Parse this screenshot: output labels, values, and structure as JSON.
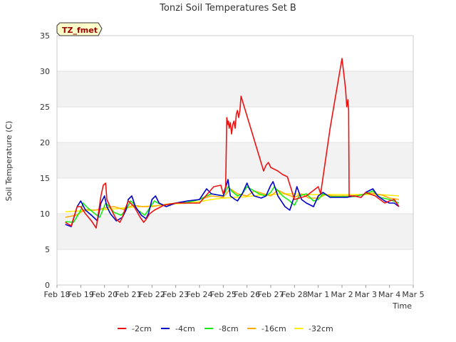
{
  "chart_data": {
    "type": "line",
    "title": "Tonzi Soil Temperatures Set B",
    "xlabel": "Time",
    "ylabel": "Soil Temperature (C)",
    "ylim": [
      0,
      35
    ],
    "xlim": [
      0,
      15
    ],
    "yticks": [
      0,
      5,
      10,
      15,
      20,
      25,
      30,
      35
    ],
    "xtick_labels": [
      "Feb 18",
      "Feb 19",
      "Feb 20",
      "Feb 21",
      "Feb 22",
      "Feb 23",
      "Feb 24",
      "Feb 25",
      "Feb 26",
      "Feb 27",
      "Feb 28",
      "Mar 1",
      "Mar 2",
      "Mar 3",
      "Mar 4",
      "Mar 5"
    ],
    "x_units": "days since Feb 18",
    "annotation": "TZ_fmet",
    "band_color": "#f2f2f2",
    "series": [
      {
        "name": "-2cm",
        "color": "#ee1111",
        "x": [
          0.35,
          0.6,
          0.85,
          1.0,
          1.2,
          1.45,
          1.65,
          1.85,
          1.95,
          2.05,
          2.1,
          2.3,
          2.5,
          2.65,
          2.75,
          2.85,
          3.0,
          3.25,
          3.5,
          3.65,
          3.75,
          3.9,
          4.1,
          4.5,
          5.0,
          6.0,
          6.6,
          6.9,
          7.0,
          7.1,
          7.15,
          7.2,
          7.22,
          7.25,
          7.3,
          7.35,
          7.4,
          7.45,
          7.5,
          7.55,
          7.6,
          7.65,
          7.7,
          7.75,
          8.7,
          8.8,
          8.9,
          9.0,
          9.3,
          9.5,
          9.7,
          10.0,
          10.5,
          11.0,
          11.1,
          11.5,
          12.0,
          12.1,
          12.15,
          12.2,
          12.25,
          12.28,
          12.3,
          12.35,
          12.5,
          12.8,
          13.0,
          13.4,
          13.6,
          13.8,
          14.0,
          14.2,
          14.4
        ],
        "y": [
          8.8,
          8.3,
          11.0,
          11.0,
          10.0,
          9.0,
          8.0,
          12.5,
          14.0,
          14.3,
          12.0,
          10.5,
          9.2,
          8.8,
          9.5,
          10.5,
          11.8,
          11.0,
          9.5,
          8.8,
          9.2,
          10.0,
          10.5,
          11.2,
          11.5,
          11.5,
          13.8,
          14.0,
          12.8,
          13.8,
          23.5,
          22.5,
          23.0,
          22.0,
          22.8,
          21.2,
          22.5,
          23.0,
          22.0,
          24.0,
          24.5,
          23.5,
          24.5,
          26.5,
          16.0,
          16.8,
          17.2,
          16.5,
          16.0,
          15.5,
          15.2,
          12.0,
          12.5,
          13.8,
          12.8,
          22.0,
          31.8,
          29.0,
          27.5,
          25.0,
          26.0,
          24.5,
          12.5,
          12.5,
          12.5,
          12.3,
          13.0,
          12.5,
          12.0,
          11.5,
          11.8,
          12.0,
          11.0
        ]
      },
      {
        "name": "-4cm",
        "color": "#0000cc",
        "x": [
          0.35,
          0.6,
          0.85,
          1.0,
          1.2,
          1.45,
          1.7,
          1.85,
          2.0,
          2.1,
          2.25,
          2.5,
          2.75,
          2.9,
          3.0,
          3.15,
          3.3,
          3.55,
          3.75,
          3.85,
          4.0,
          4.15,
          4.3,
          4.6,
          5.0,
          5.5,
          6.0,
          6.3,
          6.5,
          7.0,
          7.2,
          7.3,
          7.5,
          7.6,
          7.8,
          8.0,
          8.1,
          8.3,
          8.6,
          8.8,
          9.0,
          9.1,
          9.3,
          9.6,
          9.8,
          10.0,
          10.1,
          10.3,
          10.5,
          10.8,
          11.0,
          11.2,
          11.5,
          12.0,
          12.2,
          12.5,
          12.8,
          13.0,
          13.3,
          13.5,
          13.8,
          14.0,
          14.2,
          14.4
        ],
        "y": [
          8.5,
          8.2,
          11.0,
          11.8,
          10.5,
          9.8,
          9.0,
          11.5,
          12.5,
          11.0,
          10.0,
          9.0,
          9.5,
          10.5,
          12.0,
          12.5,
          11.0,
          9.8,
          9.3,
          10.0,
          12.0,
          12.5,
          11.5,
          11.0,
          11.5,
          11.8,
          12.0,
          13.5,
          12.8,
          12.5,
          14.8,
          12.5,
          12.0,
          11.8,
          12.8,
          14.3,
          13.5,
          12.5,
          12.2,
          12.5,
          14.0,
          14.5,
          12.5,
          11.0,
          10.5,
          12.5,
          13.8,
          12.0,
          11.5,
          11.0,
          12.5,
          13.0,
          12.3,
          12.3,
          12.3,
          12.5,
          12.3,
          13.0,
          13.5,
          12.5,
          11.8,
          11.5,
          11.5,
          11.0
        ]
      },
      {
        "name": "-8cm",
        "color": "#11ee11",
        "x": [
          0.35,
          0.7,
          1.0,
          1.1,
          1.3,
          1.6,
          1.8,
          2.05,
          2.2,
          2.4,
          2.7,
          2.9,
          3.1,
          3.2,
          3.4,
          3.7,
          3.9,
          4.1,
          4.25,
          4.5,
          5.0,
          5.5,
          6.0,
          6.5,
          7.0,
          7.2,
          7.35,
          7.6,
          7.8,
          8.0,
          8.15,
          8.5,
          8.8,
          9.0,
          9.15,
          9.5,
          9.8,
          10.0,
          10.2,
          10.5,
          10.8,
          11.0,
          11.2,
          11.5,
          12.0,
          12.5,
          13.0,
          13.3,
          13.6,
          14.0,
          14.4
        ],
        "y": [
          8.9,
          8.8,
          10.5,
          11.5,
          10.8,
          10.0,
          9.5,
          11.5,
          11.0,
          10.2,
          9.8,
          10.5,
          11.8,
          11.5,
          10.5,
          9.8,
          10.8,
          11.8,
          11.5,
          11.2,
          11.5,
          11.6,
          12.0,
          12.8,
          12.5,
          13.8,
          13.2,
          12.5,
          12.8,
          13.8,
          13.5,
          12.8,
          12.5,
          13.0,
          13.8,
          12.5,
          11.8,
          11.2,
          12.5,
          12.8,
          11.8,
          12.0,
          12.8,
          12.4,
          12.4,
          12.4,
          12.8,
          13.2,
          12.3,
          12.0,
          11.5
        ]
      },
      {
        "name": "-16cm",
        "color": "#ffaa00",
        "x": [
          0.35,
          0.8,
          1.2,
          1.6,
          2.0,
          2.4,
          2.8,
          3.2,
          3.6,
          4.0,
          4.5,
          5.0,
          5.5,
          6.0,
          6.5,
          7.0,
          7.3,
          7.6,
          8.0,
          8.3,
          8.7,
          9.0,
          9.3,
          9.6,
          10.0,
          10.3,
          10.6,
          11.0,
          11.3,
          11.6,
          12.0,
          12.5,
          13.0,
          13.3,
          13.7,
          14.0,
          14.4
        ],
        "y": [
          9.5,
          9.8,
          10.6,
          10.5,
          10.8,
          11.0,
          10.6,
          11.2,
          11.0,
          11.0,
          11.3,
          11.5,
          11.6,
          12.0,
          12.5,
          12.3,
          13.5,
          12.8,
          12.5,
          13.2,
          12.8,
          12.5,
          13.3,
          12.8,
          12.3,
          12.8,
          12.2,
          12.2,
          12.7,
          12.5,
          12.5,
          12.5,
          12.8,
          12.9,
          12.6,
          12.2,
          12.0
        ]
      },
      {
        "name": "-32cm",
        "color": "#ffee00",
        "x": [
          0.35,
          1.0,
          1.5,
          2.0,
          2.5,
          3.0,
          3.5,
          4.0,
          4.5,
          5.0,
          5.5,
          6.0,
          6.5,
          7.0,
          7.5,
          8.0,
          8.5,
          9.0,
          9.5,
          10.0,
          10.5,
          11.0,
          11.5,
          12.0,
          12.5,
          13.0,
          13.5,
          14.0,
          14.4
        ],
        "y": [
          10.3,
          10.4,
          10.5,
          10.6,
          10.7,
          10.9,
          11.0,
          11.1,
          11.2,
          11.4,
          11.5,
          11.7,
          12.0,
          12.2,
          12.3,
          12.4,
          12.6,
          12.7,
          12.8,
          12.8,
          12.7,
          12.7,
          12.7,
          12.7,
          12.7,
          12.7,
          12.7,
          12.6,
          12.5
        ]
      }
    ]
  }
}
